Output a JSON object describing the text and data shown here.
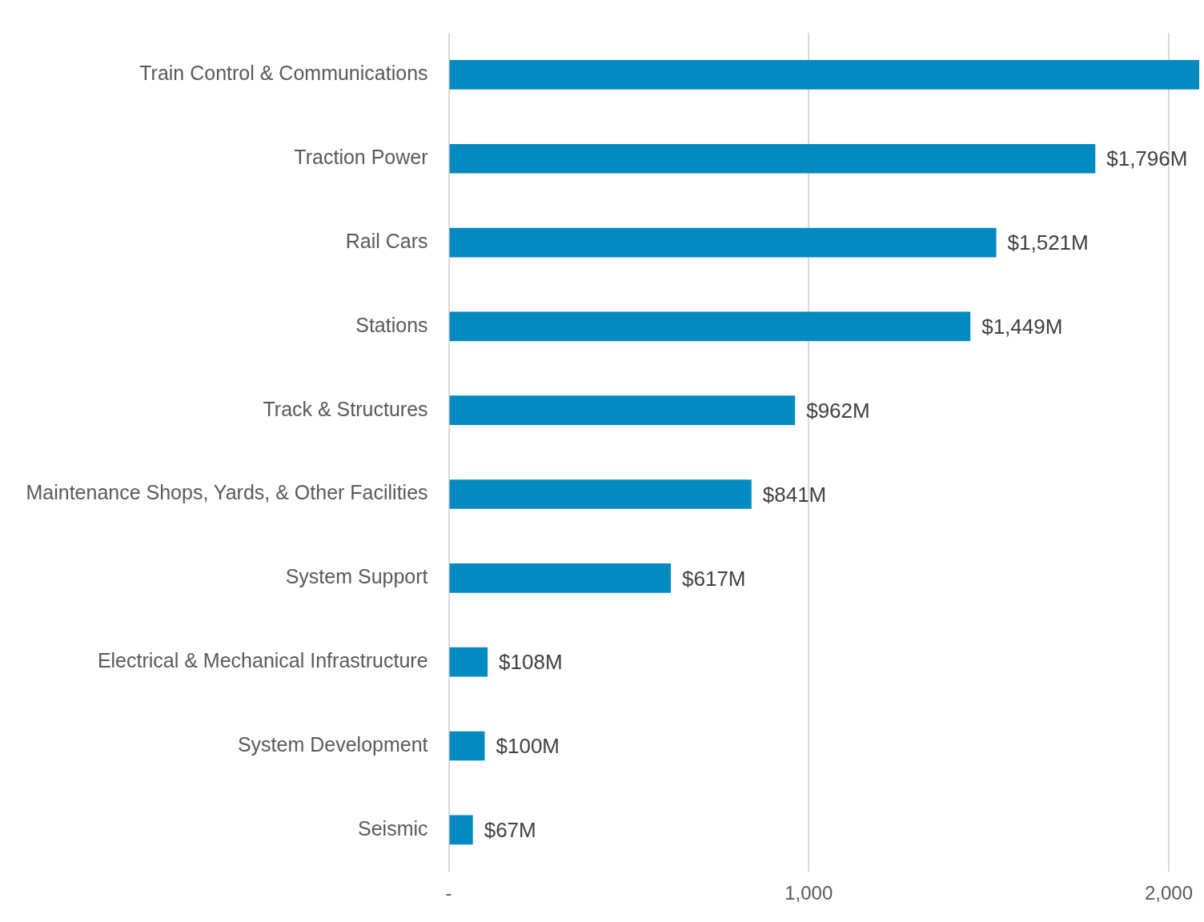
{
  "chart_data": {
    "type": "bar",
    "orientation": "horizontal",
    "categories": [
      "Train Control & Communications",
      "Traction Power",
      "Rail Cars",
      "Stations",
      "Track & Structures",
      "Maintenance Shops, Yards, & Other Facilities",
      "System Support",
      "Electrical & Mechanical Infrastructure",
      "System Development",
      "Seismic"
    ],
    "values": [
      2085,
      1796,
      1521,
      1449,
      962,
      841,
      617,
      108,
      100,
      67
    ],
    "value_labels": [
      null,
      "$1,796M",
      "$1,521M",
      "$1,449M",
      "$962M",
      "$841M",
      "$617M",
      "$108M",
      "$100M",
      "$67M"
    ],
    "color": "#038ac1",
    "xlim": [
      0,
      2085
    ],
    "xticks": [
      {
        "value": 0,
        "label": "-"
      },
      {
        "value": 1000,
        "label": "1,000"
      },
      {
        "value": 2000,
        "label": "2,000"
      }
    ],
    "grid": "x",
    "legend": false
  }
}
